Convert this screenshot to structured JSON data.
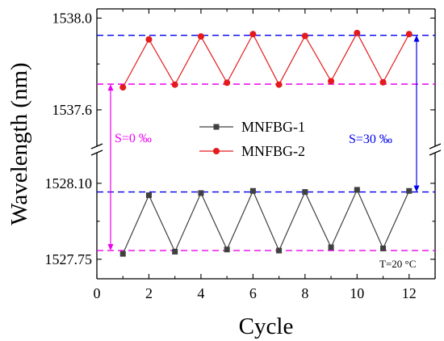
{
  "chart_data": {
    "type": "line",
    "xlabel": "Cycle",
    "ylabel": "Wavelength (nm)",
    "xlim": [
      0,
      13
    ],
    "x_ticks": [
      0,
      2,
      4,
      6,
      8,
      10,
      12
    ],
    "axis_break": "broken y-axis (two panels)",
    "panels": [
      {
        "name": "upper",
        "ylim": [
          1537.48,
          1538.04
        ],
        "y_ticks": [
          "1537.6",
          "1538.0"
        ],
        "y_tick_values": [
          1537.6,
          1538.0
        ]
      },
      {
        "name": "lower",
        "ylim": [
          1527.66,
          1528.2
        ],
        "y_ticks": [
          "1527.75",
          "1528.10"
        ],
        "y_tick_values": [
          1527.75,
          1528.1
        ]
      }
    ],
    "x": [
      1,
      2,
      3,
      4,
      5,
      6,
      7,
      8,
      9,
      10,
      11,
      12
    ],
    "series": [
      {
        "name": "MNFBG-1",
        "panel": "lower",
        "marker": "square",
        "color": "#404040",
        "values": [
          1527.775,
          1528.045,
          1527.785,
          1528.055,
          1527.795,
          1528.065,
          1527.79,
          1528.06,
          1527.805,
          1528.07,
          1527.8,
          1528.065
        ]
      },
      {
        "name": "MNFBG-2",
        "panel": "upper",
        "marker": "circle",
        "color": "#e41a1c",
        "values": [
          1537.698,
          1537.907,
          1537.71,
          1537.92,
          1537.718,
          1537.93,
          1537.71,
          1537.922,
          1537.725,
          1537.935,
          1537.72,
          1537.93
        ]
      }
    ],
    "reference_lines": [
      {
        "panel": "upper",
        "y": 1537.925,
        "color": "#0000ee"
      },
      {
        "panel": "upper",
        "y": 1537.712,
        "color": "#ee00ee"
      },
      {
        "panel": "lower",
        "y": 1528.06,
        "color": "#0000ee"
      },
      {
        "panel": "lower",
        "y": 1527.79,
        "color": "#ee00ee"
      }
    ],
    "annotations": [
      {
        "text": "S=0 ‰",
        "color": "#ee00ee"
      },
      {
        "text": "S=30 ‰",
        "color": "#0000ee"
      },
      {
        "text": "T=20 °C",
        "color": "#000000"
      }
    ],
    "legend": "center",
    "grid": false
  }
}
